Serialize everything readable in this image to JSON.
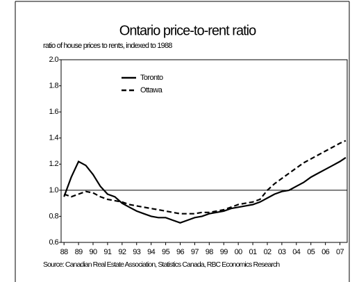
{
  "chart_data": {
    "type": "line",
    "title": "Ontario price-to-rent ratio",
    "subtitle": "ratio of house prices to rents, indexed to 1988",
    "source": "Source: Canadian Real Estate Association, Statistics Canada, RBC Economics Research",
    "x": [
      1988,
      1988.5,
      1989,
      1989.5,
      1990,
      1990.5,
      1991,
      1991.5,
      1992,
      1992.5,
      1993,
      1993.5,
      1994,
      1994.5,
      1995,
      1995.5,
      1996,
      1996.5,
      1997,
      1997.5,
      1998,
      1998.5,
      1999,
      1999.5,
      2000,
      2000.5,
      2001,
      2001.5,
      2002,
      2002.5,
      2003,
      2003.5,
      2004,
      2004.5,
      2005,
      2005.5,
      2006,
      2006.5,
      2007,
      2007.4
    ],
    "series": [
      {
        "name": "Toronto",
        "color": "#000000",
        "dash": "solid",
        "values": [
          0.95,
          1.1,
          1.22,
          1.19,
          1.12,
          1.03,
          0.97,
          0.95,
          0.9,
          0.87,
          0.84,
          0.82,
          0.8,
          0.79,
          0.79,
          0.77,
          0.75,
          0.77,
          0.79,
          0.8,
          0.82,
          0.83,
          0.84,
          0.86,
          0.87,
          0.88,
          0.89,
          0.91,
          0.94,
          0.97,
          0.99,
          1.0,
          1.03,
          1.06,
          1.1,
          1.13,
          1.16,
          1.19,
          1.22,
          1.25
        ]
      },
      {
        "name": "Ottawa",
        "color": "#000000",
        "dash": "dashed",
        "values": [
          0.97,
          0.95,
          0.97,
          0.99,
          0.98,
          0.95,
          0.93,
          0.92,
          0.91,
          0.89,
          0.88,
          0.87,
          0.86,
          0.85,
          0.84,
          0.83,
          0.82,
          0.82,
          0.82,
          0.83,
          0.83,
          0.84,
          0.85,
          0.87,
          0.89,
          0.9,
          0.91,
          0.93,
          1.0,
          1.05,
          1.09,
          1.13,
          1.17,
          1.21,
          1.24,
          1.27,
          1.3,
          1.33,
          1.36,
          1.38
        ]
      }
    ],
    "xlim": [
      1987.8,
      2007.5
    ],
    "xticks": [
      {
        "value": 1988,
        "label": "88"
      },
      {
        "value": 1989,
        "label": "89"
      },
      {
        "value": 1990,
        "label": "90"
      },
      {
        "value": 1991,
        "label": "91"
      },
      {
        "value": 1992,
        "label": "92"
      },
      {
        "value": 1993,
        "label": "93"
      },
      {
        "value": 1994,
        "label": "94"
      },
      {
        "value": 1995,
        "label": "95"
      },
      {
        "value": 1996,
        "label": "96"
      },
      {
        "value": 1997,
        "label": "97"
      },
      {
        "value": 1998,
        "label": "98"
      },
      {
        "value": 1999,
        "label": "99"
      },
      {
        "value": 2000,
        "label": "00"
      },
      {
        "value": 2001,
        "label": "01"
      },
      {
        "value": 2002,
        "label": "02"
      },
      {
        "value": 2003,
        "label": "03"
      },
      {
        "value": 2004,
        "label": "04"
      },
      {
        "value": 2005,
        "label": "05"
      },
      {
        "value": 2006,
        "label": "06"
      },
      {
        "value": 2007,
        "label": "07"
      }
    ],
    "ylim": [
      0.6,
      2.0
    ],
    "yticks": [
      0.6,
      0.8,
      {
        "value": 1.0,
        "label": "1.0"
      },
      1.2,
      1.4,
      1.6,
      1.8,
      {
        "value": 2.0,
        "label": "2.0"
      }
    ],
    "reference_line": 1,
    "grid": false,
    "legend": "upper left"
  }
}
